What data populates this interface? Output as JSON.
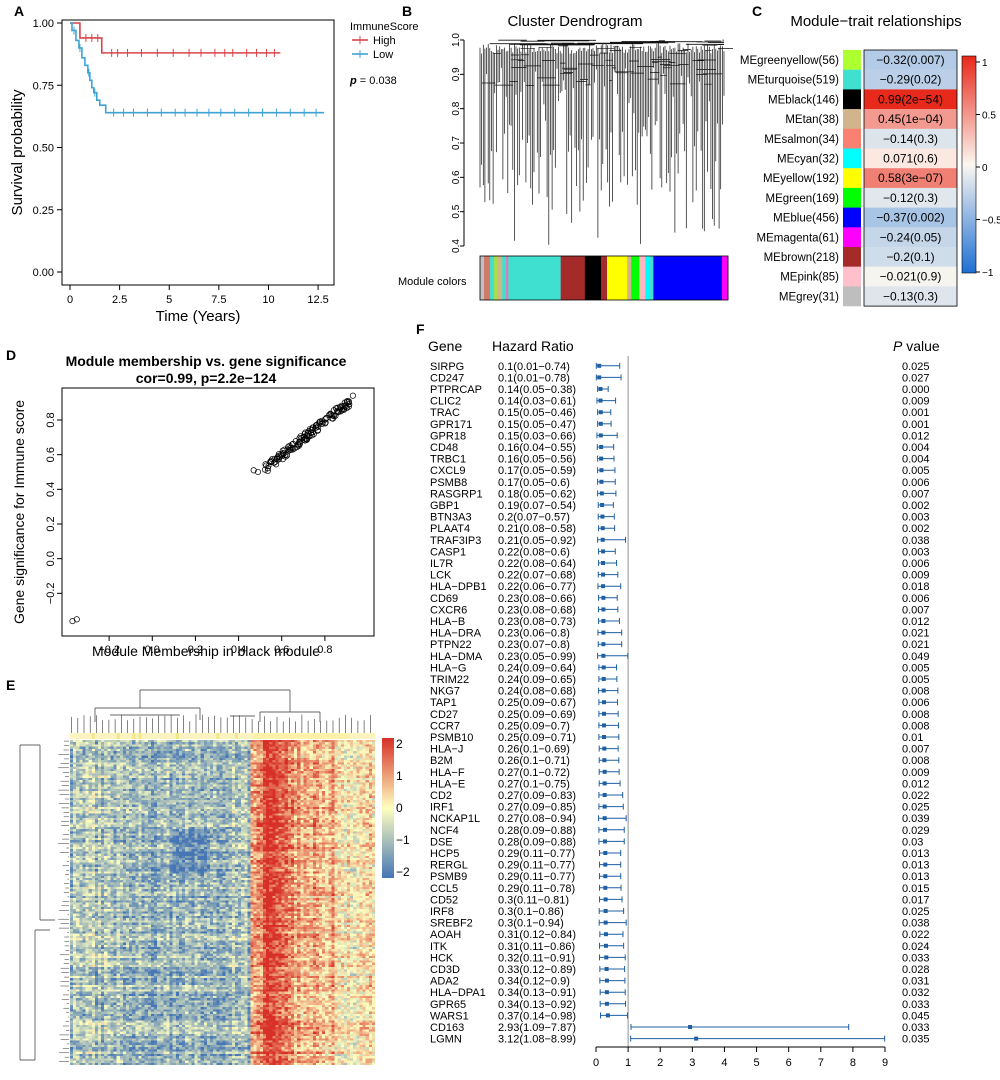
{
  "panel_labels": {
    "a": "A",
    "b": "B",
    "c": "C",
    "d": "D",
    "e": "E",
    "f": "F"
  },
  "colors": {
    "high": "#d9434b",
    "low": "#3fa4d4",
    "forest": "#1f5fa3",
    "heat_high": "#d73027",
    "heat_mid": "#ffffbf",
    "heat_low": "#4575b4"
  },
  "chart_data": [
    {
      "panel": "A",
      "type": "line",
      "xlabel": "Time (Years)",
      "ylabel": "Survival probability",
      "xlim": [
        0,
        13
      ],
      "ylim": [
        0,
        1
      ],
      "x_ticks": [
        "0",
        "2.5",
        "5",
        "7.5",
        "10",
        "12.5"
      ],
      "y_ticks": [
        "0.00",
        "0.25",
        "0.50",
        "0.75",
        "1.00"
      ],
      "legend_title": "ImmuneScore",
      "pvalue_label": "p",
      "pvalue_text": " = 0.038",
      "series": [
        {
          "name": "High",
          "color": "#d9434b",
          "steps": [
            [
              0,
              1.0
            ],
            [
              0.5,
              0.94
            ],
            [
              1.6,
              0.88
            ],
            [
              10.6,
              0.88
            ]
          ],
          "censor": [
            0.8,
            1.1,
            1.4,
            2.1,
            2.4,
            2.9,
            3.6,
            4.4,
            5.2,
            6.0,
            6.6,
            7.3,
            7.8,
            8.2,
            8.9,
            9.4,
            9.9,
            10.3
          ]
        },
        {
          "name": "Low",
          "color": "#3fa4d4",
          "steps": [
            [
              0,
              1.0
            ],
            [
              0.1,
              0.97
            ],
            [
              0.3,
              0.93
            ],
            [
              0.45,
              0.9
            ],
            [
              0.6,
              0.86
            ],
            [
              0.75,
              0.83
            ],
            [
              0.9,
              0.8
            ],
            [
              1.0,
              0.77
            ],
            [
              1.1,
              0.74
            ],
            [
              1.2,
              0.72
            ],
            [
              1.35,
              0.69
            ],
            [
              1.5,
              0.67
            ],
            [
              1.8,
              0.64
            ],
            [
              12.8,
              0.64
            ]
          ],
          "censor": [
            0.2,
            0.5,
            0.95,
            1.25,
            2.2,
            2.7,
            3.2,
            3.9,
            4.6,
            5.3,
            5.8,
            6.4,
            7.0,
            7.6,
            8.3,
            9.0,
            9.7,
            10.4,
            11.1,
            11.8,
            12.4
          ]
        }
      ]
    },
    {
      "panel": "B",
      "type": "dendrogram",
      "title": "Cluster Dendrogram",
      "y_ticks": [
        "0.4",
        "0.5",
        "0.6",
        "0.7",
        "0.8",
        "0.9",
        "1.0"
      ],
      "ylim": [
        0.4,
        1.0
      ],
      "bottom_label": "Module colors",
      "module_strip": [
        {
          "color": "#c0c0c0",
          "w": 1
        },
        {
          "color": "#d07a6a",
          "w": 1.5
        },
        {
          "color": "#40e0d0",
          "w": 1
        },
        {
          "color": "#aadd44",
          "w": 1
        },
        {
          "color": "#d2b48c",
          "w": 1
        },
        {
          "color": "#40e0d0",
          "w": 1
        },
        {
          "color": "#ff69b4",
          "w": 0.5
        },
        {
          "color": "#40e0d0",
          "w": 13
        },
        {
          "color": "#a52a2a",
          "w": 6
        },
        {
          "color": "#000000",
          "w": 4
        },
        {
          "color": "#a52a2a",
          "w": 1.5
        },
        {
          "color": "#ffff00",
          "w": 5
        },
        {
          "color": "#d2b48c",
          "w": 1
        },
        {
          "color": "#00ff00",
          "w": 2
        },
        {
          "color": "#ffb6c1",
          "w": 1.5
        },
        {
          "color": "#00ffff",
          "w": 1
        },
        {
          "color": "#40e0d0",
          "w": 1
        },
        {
          "color": "#0000ff",
          "w": 17
        },
        {
          "color": "#ff00ff",
          "w": 1.5
        }
      ]
    },
    {
      "panel": "C",
      "type": "heatmap",
      "title": "Module−trait relationships",
      "colorbar_ticks": [
        "1",
        "0.5",
        "0",
        "−0.5",
        "−1"
      ],
      "rows": [
        {
          "module": "MEgreenyellow(56)",
          "swatch": "#adff2f",
          "r": -0.32,
          "p": "0.007",
          "text": "−0.32(0.007)"
        },
        {
          "module": "MEturquoise(519)",
          "swatch": "#40e0d0",
          "r": -0.29,
          "p": "0.02",
          "text": "−0.29(0.02)"
        },
        {
          "module": "MEblack(146)",
          "swatch": "#000000",
          "r": 0.99,
          "p": "2e−54",
          "text": "0.99(2e−54)"
        },
        {
          "module": "MEtan(38)",
          "swatch": "#d2b48c",
          "r": 0.45,
          "p": "1e−04",
          "text": "0.45(1e−04)"
        },
        {
          "module": "MEsalmon(34)",
          "swatch": "#fa8072",
          "r": -0.14,
          "p": "0.3",
          "text": "−0.14(0.3)"
        },
        {
          "module": "MEcyan(32)",
          "swatch": "#00ffff",
          "r": 0.071,
          "p": "0.6",
          "text": "0.071(0.6)"
        },
        {
          "module": "MEyellow(192)",
          "swatch": "#ffff00",
          "r": 0.58,
          "p": "3e−07",
          "text": "0.58(3e−07)"
        },
        {
          "module": "MEgreen(169)",
          "swatch": "#00ff00",
          "r": -0.12,
          "p": "0.3",
          "text": "−0.12(0.3)"
        },
        {
          "module": "MEblue(456)",
          "swatch": "#0000ff",
          "r": -0.37,
          "p": "0.002",
          "text": "−0.37(0.002)"
        },
        {
          "module": "MEmagenta(61)",
          "swatch": "#ff00ff",
          "r": -0.24,
          "p": "0.05",
          "text": "−0.24(0.05)"
        },
        {
          "module": "MEbrown(218)",
          "swatch": "#a52a2a",
          "r": -0.2,
          "p": "0.1",
          "text": "−0.2(0.1)"
        },
        {
          "module": "MEpink(85)",
          "swatch": "#ffc0cb",
          "r": -0.021,
          "p": "0.9",
          "text": "−0.021(0.9)"
        },
        {
          "module": "MEgrey(31)",
          "swatch": "#bebebe",
          "r": -0.13,
          "p": "0.3",
          "text": "−0.13(0.3)"
        }
      ]
    },
    {
      "panel": "D",
      "type": "scatter",
      "title": "Module membership vs. gene significance",
      "subtitle": "cor=0.99, p=2.2e−124",
      "xlabel": "Module Membership in black module",
      "ylabel": "Gene significance for Immune score",
      "xlim": [
        -0.4,
        1.0
      ],
      "ylim": [
        -0.4,
        0.95
      ],
      "x_ticks": [
        "−0.2",
        "0.0",
        "0.2",
        "0.4",
        "0.6",
        "0.8"
      ],
      "y_ticks": [
        "−0.2",
        "0.0",
        "0.2",
        "0.4",
        "0.6",
        "0.8"
      ],
      "n_points": 140,
      "points": [
        [
          -0.37,
          -0.36
        ],
        [
          -0.35,
          -0.35
        ],
        [
          0.47,
          0.51
        ],
        [
          0.49,
          0.5
        ],
        [
          0.93,
          0.94
        ]
      ],
      "trend": {
        "x_range": [
          0.52,
          0.92
        ],
        "slope": 0.99,
        "intercept": 0.0,
        "jitter": 0.025
      }
    },
    {
      "panel": "E",
      "type": "heatmap",
      "colorbar_ticks": [
        "2",
        "1",
        "0",
        "−1",
        "−2"
      ],
      "n_rows": 146,
      "n_cols": 98
    },
    {
      "panel": "F",
      "type": "forest",
      "headers": {
        "gene": "Gene",
        "hr": "Hazard Ratio",
        "p": "P",
        "p_suffix": " value"
      },
      "x_ticks": [
        "0",
        "1",
        "2",
        "3",
        "4",
        "5",
        "6",
        "7",
        "8",
        "9"
      ],
      "xlim": [
        0,
        9
      ],
      "ref_line": 1,
      "rows": [
        {
          "gene": "SIRPG",
          "hr": 0.1,
          "lo": 0.01,
          "hi": 0.74,
          "hr_text": "0.1(0.01−0.74)",
          "p": "0.025"
        },
        {
          "gene": "CD247",
          "hr": 0.1,
          "lo": 0.01,
          "hi": 0.78,
          "hr_text": "0.1(0.01−0.78)",
          "p": "0.027"
        },
        {
          "gene": "PTPRCAP",
          "hr": 0.14,
          "lo": 0.05,
          "hi": 0.38,
          "hr_text": "0.14(0.05−0.38)",
          "p": "0.000"
        },
        {
          "gene": "CLIC2",
          "hr": 0.14,
          "lo": 0.03,
          "hi": 0.61,
          "hr_text": "0.14(0.03−0.61)",
          "p": "0.009"
        },
        {
          "gene": "TRAC",
          "hr": 0.15,
          "lo": 0.05,
          "hi": 0.46,
          "hr_text": "0.15(0.05−0.46)",
          "p": "0.001"
        },
        {
          "gene": "GPR171",
          "hr": 0.15,
          "lo": 0.05,
          "hi": 0.47,
          "hr_text": "0.15(0.05−0.47)",
          "p": "0.001"
        },
        {
          "gene": "GPR18",
          "hr": 0.15,
          "lo": 0.03,
          "hi": 0.66,
          "hr_text": "0.15(0.03−0.66)",
          "p": "0.012"
        },
        {
          "gene": "CD48",
          "hr": 0.16,
          "lo": 0.04,
          "hi": 0.55,
          "hr_text": "0.16(0.04−0.55)",
          "p": "0.004"
        },
        {
          "gene": "TRBC1",
          "hr": 0.16,
          "lo": 0.05,
          "hi": 0.56,
          "hr_text": "0.16(0.05−0.56)",
          "p": "0.004"
        },
        {
          "gene": "CXCL9",
          "hr": 0.17,
          "lo": 0.05,
          "hi": 0.59,
          "hr_text": "0.17(0.05−0.59)",
          "p": "0.005"
        },
        {
          "gene": "PSMB8",
          "hr": 0.17,
          "lo": 0.05,
          "hi": 0.6,
          "hr_text": "0.17(0.05−0.6)",
          "p": "0.006"
        },
        {
          "gene": "RASGRP1",
          "hr": 0.18,
          "lo": 0.05,
          "hi": 0.62,
          "hr_text": "0.18(0.05−0.62)",
          "p": "0.007"
        },
        {
          "gene": "GBP1",
          "hr": 0.19,
          "lo": 0.07,
          "hi": 0.54,
          "hr_text": "0.19(0.07−0.54)",
          "p": "0.002"
        },
        {
          "gene": "BTN3A3",
          "hr": 0.2,
          "lo": 0.07,
          "hi": 0.57,
          "hr_text": "0.2(0.07−0.57)",
          "p": "0.003"
        },
        {
          "gene": "PLAAT4",
          "hr": 0.21,
          "lo": 0.08,
          "hi": 0.58,
          "hr_text": "0.21(0.08−0.58)",
          "p": "0.002"
        },
        {
          "gene": "TRAF3IP3",
          "hr": 0.21,
          "lo": 0.05,
          "hi": 0.92,
          "hr_text": "0.21(0.05−0.92)",
          "p": "0.038"
        },
        {
          "gene": "CASP1",
          "hr": 0.22,
          "lo": 0.08,
          "hi": 0.6,
          "hr_text": "0.22(0.08−0.6)",
          "p": "0.003"
        },
        {
          "gene": "IL7R",
          "hr": 0.22,
          "lo": 0.08,
          "hi": 0.64,
          "hr_text": "0.22(0.08−0.64)",
          "p": "0.006"
        },
        {
          "gene": "LCK",
          "hr": 0.22,
          "lo": 0.07,
          "hi": 0.68,
          "hr_text": "0.22(0.07−0.68)",
          "p": "0.009"
        },
        {
          "gene": "HLA−DPB1",
          "hr": 0.22,
          "lo": 0.06,
          "hi": 0.77,
          "hr_text": "0.22(0.06−0.77)",
          "p": "0.018"
        },
        {
          "gene": "CD69",
          "hr": 0.23,
          "lo": 0.08,
          "hi": 0.66,
          "hr_text": "0.23(0.08−0.66)",
          "p": "0.006"
        },
        {
          "gene": "CXCR6",
          "hr": 0.23,
          "lo": 0.08,
          "hi": 0.68,
          "hr_text": "0.23(0.08−0.68)",
          "p": "0.007"
        },
        {
          "gene": "HLA−B",
          "hr": 0.23,
          "lo": 0.08,
          "hi": 0.73,
          "hr_text": "0.23(0.08−0.73)",
          "p": "0.012"
        },
        {
          "gene": "HLA−DRA",
          "hr": 0.23,
          "lo": 0.06,
          "hi": 0.8,
          "hr_text": "0.23(0.06−0.8)",
          "p": "0.021"
        },
        {
          "gene": "PTPN22",
          "hr": 0.23,
          "lo": 0.07,
          "hi": 0.8,
          "hr_text": "0.23(0.07−0.8)",
          "p": "0.021"
        },
        {
          "gene": "HLA−DMA",
          "hr": 0.23,
          "lo": 0.05,
          "hi": 0.99,
          "hr_text": "0.23(0.05−0.99)",
          "p": "0.049"
        },
        {
          "gene": "HLA−G",
          "hr": 0.24,
          "lo": 0.09,
          "hi": 0.64,
          "hr_text": "0.24(0.09−0.64)",
          "p": "0.005"
        },
        {
          "gene": "TRIM22",
          "hr": 0.24,
          "lo": 0.09,
          "hi": 0.65,
          "hr_text": "0.24(0.09−0.65)",
          "p": "0.005"
        },
        {
          "gene": "NKG7",
          "hr": 0.24,
          "lo": 0.08,
          "hi": 0.68,
          "hr_text": "0.24(0.08−0.68)",
          "p": "0.008"
        },
        {
          "gene": "TAP1",
          "hr": 0.25,
          "lo": 0.09,
          "hi": 0.67,
          "hr_text": "0.25(0.09−0.67)",
          "p": "0.006"
        },
        {
          "gene": "CD27",
          "hr": 0.25,
          "lo": 0.09,
          "hi": 0.69,
          "hr_text": "0.25(0.09−0.69)",
          "p": "0.008"
        },
        {
          "gene": "CCR7",
          "hr": 0.25,
          "lo": 0.09,
          "hi": 0.7,
          "hr_text": "0.25(0.09−0.7)",
          "p": "0.008"
        },
        {
          "gene": "PSMB10",
          "hr": 0.25,
          "lo": 0.09,
          "hi": 0.71,
          "hr_text": "0.25(0.09−0.71)",
          "p": "0.01"
        },
        {
          "gene": "HLA−J",
          "hr": 0.26,
          "lo": 0.1,
          "hi": 0.69,
          "hr_text": "0.26(0.1−0.69)",
          "p": "0.007"
        },
        {
          "gene": "B2M",
          "hr": 0.26,
          "lo": 0.1,
          "hi": 0.71,
          "hr_text": "0.26(0.1−0.71)",
          "p": "0.008"
        },
        {
          "gene": "HLA−F",
          "hr": 0.27,
          "lo": 0.1,
          "hi": 0.72,
          "hr_text": "0.27(0.1−0.72)",
          "p": "0.009"
        },
        {
          "gene": "HLA−E",
          "hr": 0.27,
          "lo": 0.1,
          "hi": 0.75,
          "hr_text": "0.27(0.1−0.75)",
          "p": "0.012"
        },
        {
          "gene": "CD2",
          "hr": 0.27,
          "lo": 0.09,
          "hi": 0.83,
          "hr_text": "0.27(0.09−0.83)",
          "p": "0.022"
        },
        {
          "gene": "IRF1",
          "hr": 0.27,
          "lo": 0.09,
          "hi": 0.85,
          "hr_text": "0.27(0.09−0.85)",
          "p": "0.025"
        },
        {
          "gene": "NCKAP1L",
          "hr": 0.27,
          "lo": 0.08,
          "hi": 0.94,
          "hr_text": "0.27(0.08−0.94)",
          "p": "0.039"
        },
        {
          "gene": "NCF4",
          "hr": 0.28,
          "lo": 0.09,
          "hi": 0.88,
          "hr_text": "0.28(0.09−0.88)",
          "p": "0.029"
        },
        {
          "gene": "DSE",
          "hr": 0.28,
          "lo": 0.09,
          "hi": 0.88,
          "hr_text": "0.28(0.09−0.88)",
          "p": "0.03"
        },
        {
          "gene": "HCP5",
          "hr": 0.29,
          "lo": 0.11,
          "hi": 0.77,
          "hr_text": "0.29(0.11−0.77)",
          "p": "0.013"
        },
        {
          "gene": "RERGL",
          "hr": 0.29,
          "lo": 0.11,
          "hi": 0.77,
          "hr_text": "0.29(0.11−0.77)",
          "p": "0.013"
        },
        {
          "gene": "PSMB9",
          "hr": 0.29,
          "lo": 0.11,
          "hi": 0.77,
          "hr_text": "0.29(0.11−0.77)",
          "p": "0.013"
        },
        {
          "gene": "CCL5",
          "hr": 0.29,
          "lo": 0.11,
          "hi": 0.78,
          "hr_text": "0.29(0.11−0.78)",
          "p": "0.015"
        },
        {
          "gene": "CD52",
          "hr": 0.3,
          "lo": 0.11,
          "hi": 0.81,
          "hr_text": "0.3(0.11−0.81)",
          "p": "0.017"
        },
        {
          "gene": "IRF8",
          "hr": 0.3,
          "lo": 0.1,
          "hi": 0.86,
          "hr_text": "0.3(0.1−0.86)",
          "p": "0.025"
        },
        {
          "gene": "SREBF2",
          "hr": 0.3,
          "lo": 0.1,
          "hi": 0.94,
          "hr_text": "0.3(0.1−0.94)",
          "p": "0.038"
        },
        {
          "gene": "AOAH",
          "hr": 0.31,
          "lo": 0.12,
          "hi": 0.84,
          "hr_text": "0.31(0.12−0.84)",
          "p": "0.022"
        },
        {
          "gene": "ITK",
          "hr": 0.31,
          "lo": 0.11,
          "hi": 0.86,
          "hr_text": "0.31(0.11−0.86)",
          "p": "0.024"
        },
        {
          "gene": "HCK",
          "hr": 0.32,
          "lo": 0.11,
          "hi": 0.91,
          "hr_text": "0.32(0.11−0.91)",
          "p": "0.033"
        },
        {
          "gene": "CD3D",
          "hr": 0.33,
          "lo": 0.12,
          "hi": 0.89,
          "hr_text": "0.33(0.12−0.89)",
          "p": "0.028"
        },
        {
          "gene": "ADA2",
          "hr": 0.34,
          "lo": 0.12,
          "hi": 0.9,
          "hr_text": "0.34(0.12−0.9)",
          "p": "0.031"
        },
        {
          "gene": "HLA−DPA1",
          "hr": 0.34,
          "lo": 0.13,
          "hi": 0.91,
          "hr_text": "0.34(0.13−0.91)",
          "p": "0.032"
        },
        {
          "gene": "GPR65",
          "hr": 0.34,
          "lo": 0.13,
          "hi": 0.92,
          "hr_text": "0.34(0.13−0.92)",
          "p": "0.033"
        },
        {
          "gene": "WARS1",
          "hr": 0.37,
          "lo": 0.14,
          "hi": 0.98,
          "hr_text": "0.37(0.14−0.98)",
          "p": "0.045"
        },
        {
          "gene": "CD163",
          "hr": 2.93,
          "lo": 1.09,
          "hi": 7.87,
          "hr_text": "2.93(1.09−7.87)",
          "p": "0.033"
        },
        {
          "gene": "LGMN",
          "hr": 3.12,
          "lo": 1.08,
          "hi": 8.99,
          "hr_text": "3.12(1.08−8.99)",
          "p": "0.035"
        }
      ]
    }
  ]
}
